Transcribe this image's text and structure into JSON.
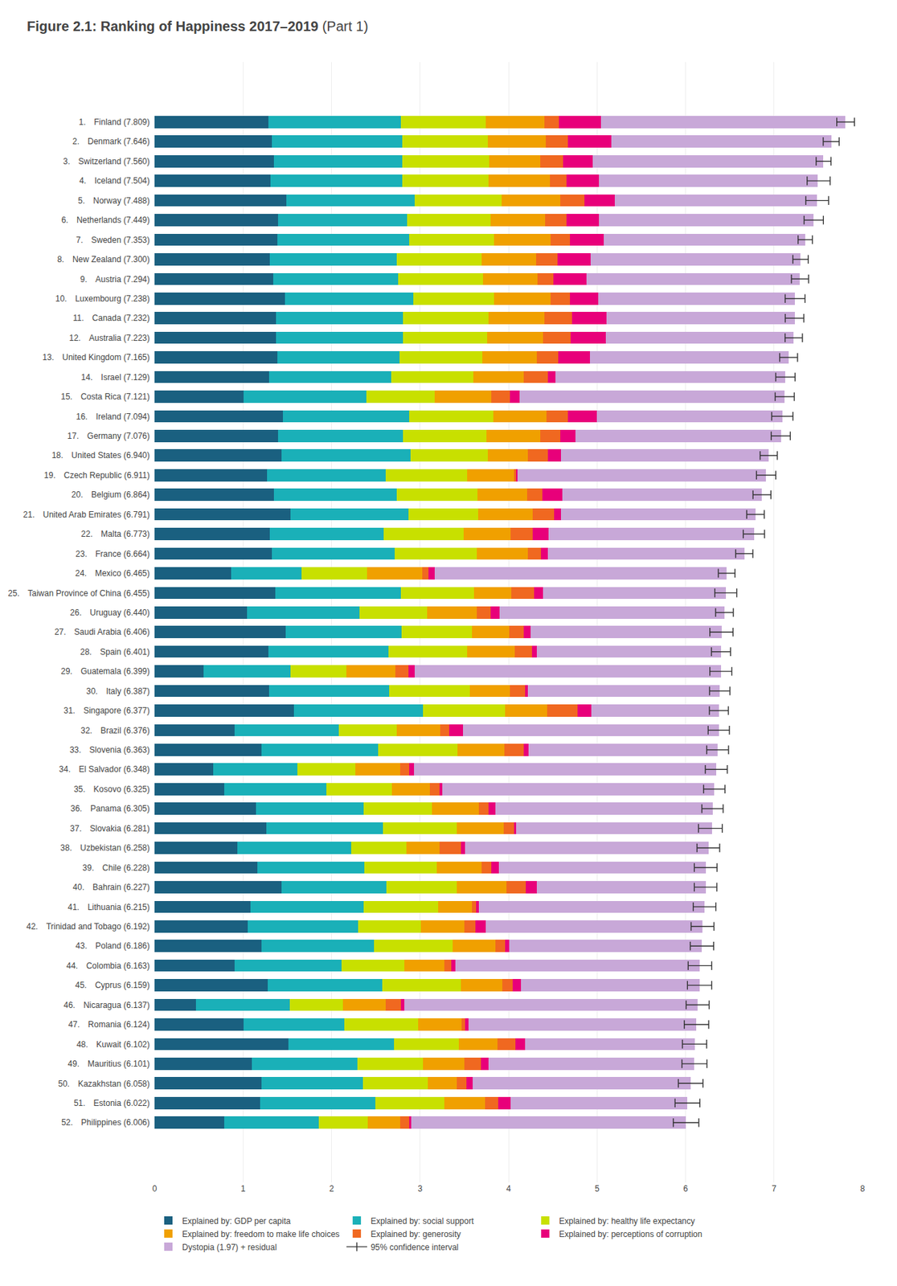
{
  "chart_data": {
    "type": "bar",
    "orientation": "horizontal",
    "stacked": true,
    "title": "Figure 2.1: Ranking of Happiness 2017–2019",
    "subtitle": "(Part 1)",
    "categories": [
      "1. Finland (7.809)",
      "2. Denmark (7.646)",
      "3. Switzerland (7.560)",
      "4. Iceland (7.504)",
      "5. Norway (7.488)",
      "6. Netherlands (7.449)",
      "7. Sweden (7.353)",
      "8. New Zealand (7.300)",
      "9. Austria (7.294)",
      "10. Luxembourg (7.238)",
      "11. Canada (7.232)",
      "12. Australia (7.223)",
      "13. United Kingdom (7.165)",
      "14. Israel (7.129)",
      "15. Costa Rica (7.121)",
      "16. Ireland (7.094)",
      "17. Germany (7.076)",
      "18. United States (6.940)",
      "19. Czech Republic (6.911)",
      "20. Belgium (6.864)",
      "21. United Arab Emirates (6.791)",
      "22. Malta (6.773)",
      "23. France (6.664)",
      "24. Mexico (6.465)",
      "25. Taiwan Province of China (6.455)",
      "26. Uruguay (6.440)",
      "27. Saudi Arabia (6.406)",
      "28. Spain (6.401)",
      "29. Guatemala (6.399)",
      "30. Italy (6.387)",
      "31. Singapore (6.377)",
      "32. Brazil (6.376)",
      "33. Slovenia (6.363)",
      "34. El Salvador (6.348)",
      "35. Kosovo (6.325)",
      "36. Panama (6.305)",
      "37. Slovakia (6.281)",
      "38. Uzbekistan (6.258)",
      "39. Chile (6.228)",
      "40. Bahrain (6.227)",
      "41. Lithuania (6.215)",
      "42. Trinidad and Tobago (6.192)",
      "43. Poland (6.186)",
      "44. Colombia (6.163)",
      "45. Cyprus (6.159)",
      "46. Nicaragua (6.137)",
      "47. Romania (6.124)",
      "48. Kuwait (6.102)",
      "49. Mauritius (6.101)",
      "50. Kazakhstan (6.058)",
      "51. Estonia (6.022)",
      "52. Philippines (6.006)"
    ],
    "series": [
      {
        "name": "Explained by: GDP per capita",
        "color": "#1a6080",
        "values": [
          1.285,
          1.324,
          1.346,
          1.313,
          1.488,
          1.396,
          1.387,
          1.303,
          1.341,
          1.474,
          1.372,
          1.372,
          1.389,
          1.293,
          1.008,
          1.448,
          1.397,
          1.433,
          1.269,
          1.346,
          1.538,
          1.3,
          1.324,
          0.868,
          1.366,
          1.045,
          1.482,
          1.286,
          0.555,
          1.296,
          1.572,
          0.903,
          1.211,
          0.665,
          0.786,
          1.149,
          1.261,
          0.934,
          1.159,
          1.435,
          1.082,
          1.049,
          1.212,
          0.902,
          1.282,
          0.469,
          1.003,
          1.516,
          1.098,
          1.212,
          1.193,
          0.784
        ]
      },
      {
        "name": "Explained by: social support",
        "color": "#1ab0b8",
        "values": [
          1.499,
          1.473,
          1.454,
          1.488,
          1.453,
          1.46,
          1.487,
          1.436,
          1.409,
          1.45,
          1.437,
          1.432,
          1.377,
          1.385,
          1.383,
          1.432,
          1.411,
          1.457,
          1.346,
          1.393,
          1.333,
          1.288,
          1.39,
          0.795,
          1.415,
          1.269,
          1.313,
          1.356,
          0.982,
          1.355,
          1.463,
          1.175,
          1.319,
          0.948,
          1.153,
          1.216,
          1.323,
          1.286,
          1.209,
          1.184,
          1.279,
          1.249,
          1.268,
          1.208,
          1.289,
          1.056,
          1.143,
          1.186,
          1.192,
          1.142,
          1.303,
          1.069
        ]
      },
      {
        "name": "Explained by: healthy life expectancy",
        "color": "#c8e000",
        "values": [
          0.961,
          0.967,
          0.983,
          0.975,
          0.983,
          0.94,
          0.959,
          0.956,
          0.962,
          0.91,
          0.966,
          0.956,
          0.938,
          0.927,
          0.778,
          0.945,
          0.944,
          0.874,
          0.919,
          0.908,
          0.785,
          0.906,
          0.924,
          0.739,
          0.831,
          0.765,
          0.794,
          0.894,
          0.629,
          0.912,
          0.927,
          0.657,
          0.896,
          0.658,
          0.742,
          0.766,
          0.833,
          0.629,
          0.82,
          0.798,
          0.84,
          0.715,
          0.886,
          0.715,
          0.893,
          0.603,
          0.829,
          0.734,
          0.743,
          0.734,
          0.779,
          0.558
        ]
      },
      {
        "name": "Explained by: freedom to make life choices",
        "color": "#f0a000",
        "values": [
          0.662,
          0.66,
          0.572,
          0.695,
          0.66,
          0.62,
          0.645,
          0.619,
          0.617,
          0.638,
          0.628,
          0.629,
          0.619,
          0.564,
          0.639,
          0.603,
          0.609,
          0.454,
          0.53,
          0.56,
          0.617,
          0.528,
          0.581,
          0.62,
          0.417,
          0.563,
          0.416,
          0.533,
          0.555,
          0.456,
          0.478,
          0.49,
          0.529,
          0.507,
          0.432,
          0.532,
          0.528,
          0.375,
          0.508,
          0.563,
          0.382,
          0.491,
          0.485,
          0.453,
          0.462,
          0.483,
          0.496,
          0.442,
          0.471,
          0.324,
          0.46,
          0.366
        ]
      },
      {
        "name": "Explained by: generosity",
        "color": "#f06820",
        "values": [
          0.159,
          0.243,
          0.263,
          0.185,
          0.275,
          0.237,
          0.219,
          0.238,
          0.179,
          0.222,
          0.312,
          0.313,
          0.24,
          0.276,
          0.21,
          0.239,
          0.224,
          0.23,
          0.022,
          0.174,
          0.239,
          0.253,
          0.15,
          0.074,
          0.256,
          0.153,
          0.166,
          0.195,
          0.148,
          0.165,
          0.341,
          0.102,
          0.213,
          0.098,
          0.108,
          0.114,
          0.115,
          0.24,
          0.111,
          0.216,
          0.054,
          0.122,
          0.113,
          0.073,
          0.119,
          0.175,
          0.034,
          0.197,
          0.184,
          0.112,
          0.148,
          0.098
        ]
      },
      {
        "name": "Explained by: perceptions of corruption",
        "color": "#e8007a",
        "values": [
          0.477,
          0.495,
          0.335,
          0.366,
          0.34,
          0.365,
          0.38,
          0.374,
          0.375,
          0.318,
          0.395,
          0.4,
          0.356,
          0.083,
          0.106,
          0.328,
          0.171,
          0.148,
          0.013,
          0.226,
          0.082,
          0.18,
          0.074,
          0.073,
          0.108,
          0.102,
          0.082,
          0.056,
          0.068,
          0.038,
          0.153,
          0.159,
          0.059,
          0.057,
          0.027,
          0.072,
          0.029,
          0.048,
          0.082,
          0.127,
          0.03,
          0.115,
          0.042,
          0.049,
          0.097,
          0.039,
          0.045,
          0.114,
          0.088,
          0.069,
          0.143,
          0.027
        ]
      },
      {
        "name": "Dystopia (1.97) + residual",
        "color": "#c8a8d8",
        "values": [
          2.762,
          2.49,
          2.602,
          2.472,
          2.29,
          2.431,
          2.277,
          2.374,
          2.411,
          2.226,
          2.122,
          2.121,
          2.246,
          2.601,
          2.997,
          2.099,
          2.32,
          2.344,
          2.812,
          2.257,
          2.197,
          2.318,
          2.221,
          3.296,
          2.062,
          2.543,
          2.153,
          2.081,
          3.462,
          2.165,
          1.443,
          2.89,
          2.136,
          3.415,
          3.077,
          2.456,
          2.212,
          2.746,
          2.339,
          1.904,
          2.548,
          2.451,
          2.18,
          2.763,
          2.017,
          3.312,
          2.574,
          1.913,
          2.325,
          2.465,
          1.996,
          3.104
        ]
      }
    ],
    "confidence_interval": {
      "name": "95% confidence interval",
      "color": "#303030",
      "lower": [
        7.709,
        7.556,
        7.476,
        7.374,
        7.359,
        7.34,
        7.272,
        7.213,
        7.197,
        7.126,
        7.127,
        7.125,
        7.064,
        7.02,
        7.013,
        6.974,
        6.968,
        6.843,
        6.802,
        6.763,
        6.692,
        6.653,
        6.567,
        6.371,
        6.331,
        6.34,
        6.275,
        6.293,
        6.275,
        6.272,
        6.27,
        6.256,
        6.24,
        6.224,
        6.204,
        6.185,
        6.147,
        6.13,
        6.1,
        6.1,
        6.087,
        6.063,
        6.054,
        6.03,
        6.022,
        6.007,
        5.986,
        5.965,
        5.96,
        5.919,
        5.882,
        5.862
      ],
      "upper": [
        7.909,
        7.736,
        7.644,
        7.634,
        7.617,
        7.558,
        7.434,
        7.387,
        7.391,
        7.35,
        7.337,
        7.321,
        7.266,
        7.238,
        7.229,
        7.214,
        7.184,
        7.037,
        7.02,
        6.965,
        6.89,
        6.893,
        6.761,
        6.559,
        6.579,
        6.54,
        6.537,
        6.509,
        6.523,
        6.502,
        6.484,
        6.496,
        6.486,
        6.472,
        6.446,
        6.425,
        6.415,
        6.386,
        6.356,
        6.354,
        6.343,
        6.321,
        6.318,
        6.296,
        6.296,
        6.267,
        6.262,
        6.239,
        6.242,
        6.197,
        6.162,
        6.15
      ]
    },
    "xlim": [
      0,
      8
    ],
    "xticks": [
      0,
      1,
      2,
      3,
      4,
      5,
      6,
      7,
      8
    ],
    "grid": true,
    "legend": "bottom"
  }
}
